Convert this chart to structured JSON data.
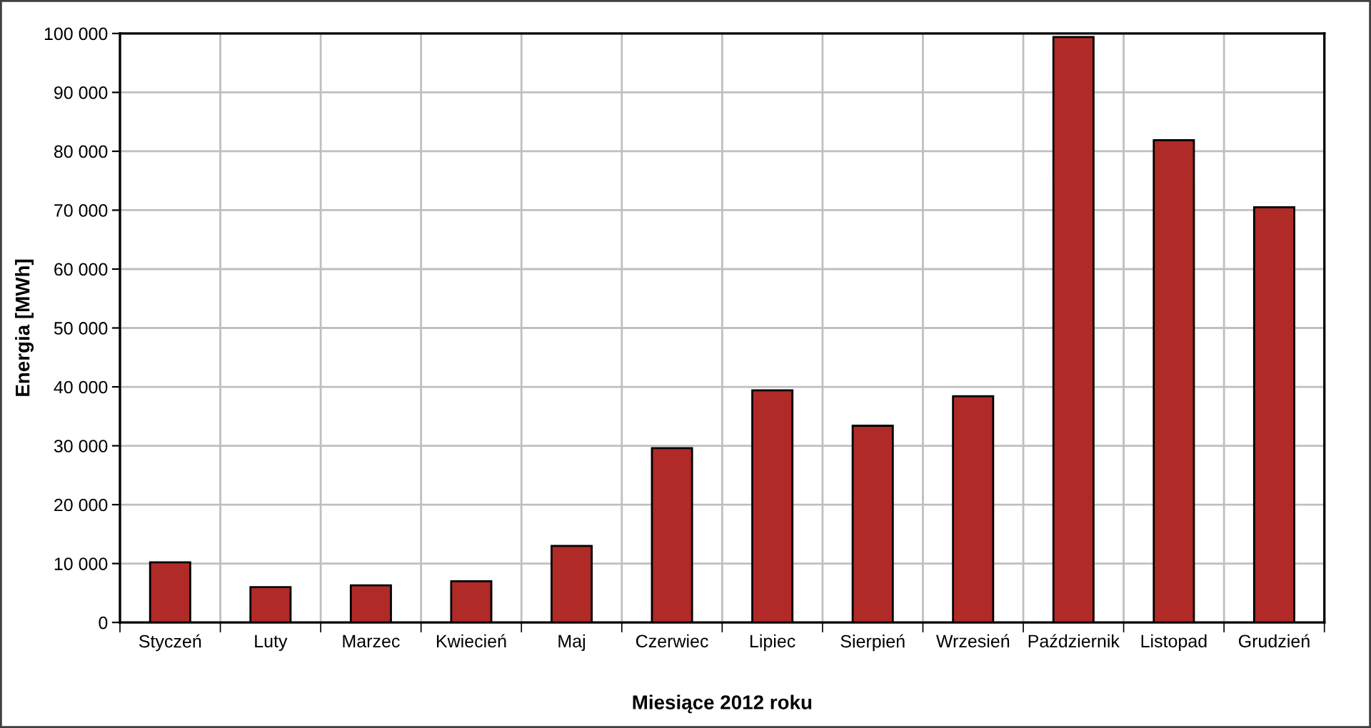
{
  "chart_data": {
    "type": "bar",
    "xlabel": "Miesiące 2012 roku",
    "ylabel": "Energia [MWh]",
    "categories": [
      "Styczeń",
      "Luty",
      "Marzec",
      "Kwiecień",
      "Maj",
      "Czerwiec",
      "Lipiec",
      "Sierpień",
      "Wrzesień",
      "Październik",
      "Listopad",
      "Grudzień"
    ],
    "values": [
      10200,
      6000,
      6300,
      7000,
      13000,
      29600,
      39400,
      33400,
      38400,
      99400,
      81900,
      70500
    ],
    "color": "#b02a27",
    "ylim": [
      0,
      100000
    ],
    "yticks": [
      0,
      {
        "value": 10000,
        "label": "10 000"
      },
      {
        "value": 20000,
        "label": "20 000"
      },
      {
        "value": 30000,
        "label": "30 000"
      },
      {
        "value": 40000,
        "label": "40 000"
      },
      {
        "value": 50000,
        "label": "50 000"
      },
      {
        "value": 60000,
        "label": "60 000"
      },
      {
        "value": 70000,
        "label": "70 000"
      },
      {
        "value": 80000,
        "label": "80 000"
      },
      {
        "value": 90000,
        "label": "90 000"
      },
      {
        "value": 100000,
        "label": "100 000"
      }
    ],
    "grid": true,
    "legend": false
  }
}
